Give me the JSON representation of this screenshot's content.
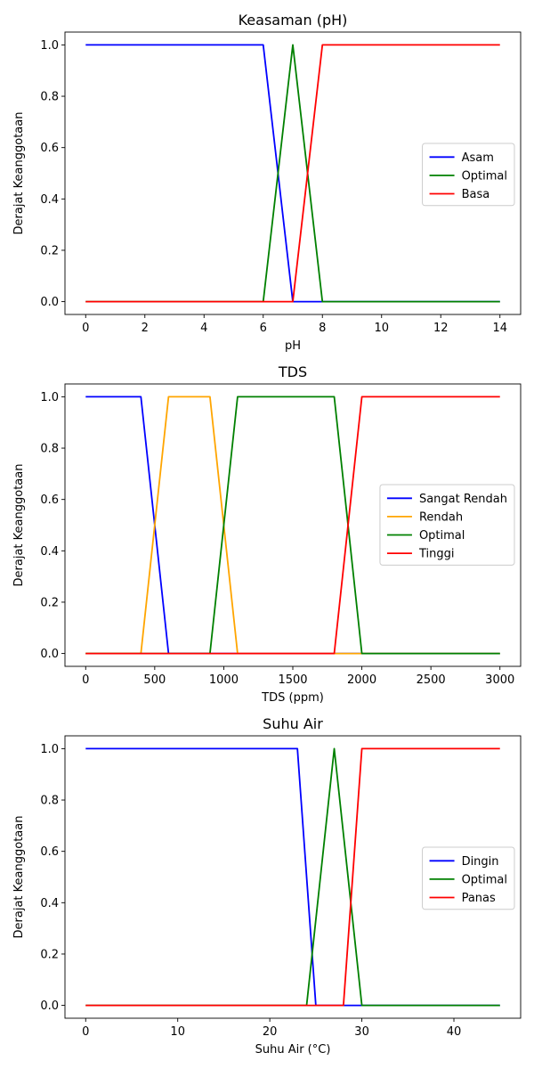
{
  "chart_data": [
    {
      "type": "line",
      "title": "Keasaman (pH)",
      "xlabel": "pH",
      "ylabel": "Derajat Keanggotaan",
      "xlim": [
        -0.7,
        14.7
      ],
      "ylim": [
        -0.05,
        1.05
      ],
      "xticks": [
        0,
        2,
        4,
        6,
        8,
        10,
        12,
        14
      ],
      "xtick_labels": [
        "0",
        "2",
        "4",
        "6",
        "8",
        "10",
        "12",
        "14"
      ],
      "yticks": [
        0.0,
        0.2,
        0.4,
        0.6,
        0.8,
        1.0
      ],
      "ytick_labels": [
        "0.0",
        "0.2",
        "0.4",
        "0.6",
        "0.8",
        "1.0"
      ],
      "grid": false,
      "legend_position": "center-right",
      "series": [
        {
          "name": "Asam",
          "color": "#0000ff",
          "x": [
            0,
            6,
            7,
            14
          ],
          "y": [
            1,
            1,
            0,
            0
          ]
        },
        {
          "name": "Optimal",
          "color": "#008000",
          "x": [
            0,
            6,
            7,
            8,
            14
          ],
          "y": [
            0,
            0,
            1,
            0,
            0
          ]
        },
        {
          "name": "Basa",
          "color": "#ff0000",
          "x": [
            0,
            7,
            8,
            14
          ],
          "y": [
            0,
            0,
            1,
            1
          ]
        }
      ]
    },
    {
      "type": "line",
      "title": "TDS",
      "xlabel": "TDS (ppm)",
      "ylabel": "Derajat Keanggotaan",
      "xlim": [
        -150,
        3150
      ],
      "ylim": [
        -0.05,
        1.05
      ],
      "xticks": [
        0,
        500,
        1000,
        1500,
        2000,
        2500,
        3000
      ],
      "xtick_labels": [
        "0",
        "500",
        "1000",
        "1500",
        "2000",
        "2500",
        "3000"
      ],
      "yticks": [
        0.0,
        0.2,
        0.4,
        0.6,
        0.8,
        1.0
      ],
      "ytick_labels": [
        "0.0",
        "0.2",
        "0.4",
        "0.6",
        "0.8",
        "1.0"
      ],
      "grid": false,
      "legend_position": "center-right",
      "series": [
        {
          "name": "Sangat Rendah",
          "color": "#0000ff",
          "x": [
            0,
            400,
            600,
            3000
          ],
          "y": [
            1,
            1,
            0,
            0
          ]
        },
        {
          "name": "Rendah",
          "color": "#ffa500",
          "x": [
            0,
            400,
            600,
            900,
            1100,
            3000
          ],
          "y": [
            0,
            0,
            1,
            1,
            0,
            0
          ]
        },
        {
          "name": "Optimal",
          "color": "#008000",
          "x": [
            0,
            900,
            1100,
            1800,
            2000,
            3000
          ],
          "y": [
            0,
            0,
            1,
            1,
            0,
            0
          ]
        },
        {
          "name": "Tinggi",
          "color": "#ff0000",
          "x": [
            0,
            1800,
            2000,
            3000
          ],
          "y": [
            0,
            0,
            1,
            1
          ]
        }
      ]
    },
    {
      "type": "line",
      "title": "Suhu Air",
      "xlabel": "Suhu Air (°C)",
      "ylabel": "Derajat Keanggotaan",
      "xlim": [
        -2.25,
        47.25
      ],
      "ylim": [
        -0.05,
        1.05
      ],
      "xticks": [
        0,
        10,
        20,
        30,
        40
      ],
      "xtick_labels": [
        "0",
        "10",
        "20",
        "30",
        "40"
      ],
      "yticks": [
        0.0,
        0.2,
        0.4,
        0.6,
        0.8,
        1.0
      ],
      "ytick_labels": [
        "0.0",
        "0.2",
        "0.4",
        "0.6",
        "0.8",
        "1.0"
      ],
      "grid": false,
      "legend_position": "center-right",
      "series": [
        {
          "name": "Dingin",
          "color": "#0000ff",
          "x": [
            0,
            23,
            25,
            45
          ],
          "y": [
            1,
            1,
            0,
            0
          ]
        },
        {
          "name": "Optimal",
          "color": "#008000",
          "x": [
            0,
            24,
            27,
            30,
            45
          ],
          "y": [
            0,
            0,
            1,
            0,
            0
          ]
        },
        {
          "name": "Panas",
          "color": "#ff0000",
          "x": [
            0,
            28,
            30,
            45
          ],
          "y": [
            0,
            0,
            1,
            1
          ]
        }
      ]
    }
  ]
}
